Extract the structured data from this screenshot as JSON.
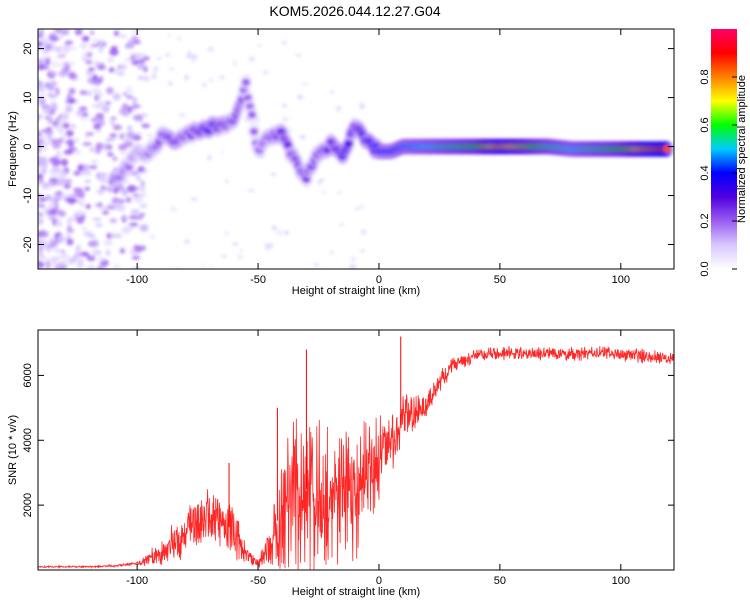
{
  "title": "KOM5.2026.044.12.27.G04",
  "chart_data": [
    {
      "type": "heatmap",
      "name": "spectrogram",
      "title": "KOM5.2026.044.12.27.G04",
      "xlabel": "Height of straight line (km)",
      "ylabel": "Frequency (Hz)",
      "xlim": [
        -141,
        122
      ],
      "ylim": [
        -25,
        24
      ],
      "xticks": [
        -100,
        -50,
        0,
        50,
        100
      ],
      "yticks": [
        -20,
        -10,
        0,
        10,
        20
      ],
      "colorbar": {
        "label": "Normalized spectral amplitude",
        "range": [
          0,
          1
        ],
        "ticks": [
          0.0,
          0.2,
          0.4,
          0.6,
          0.8
        ],
        "tick_labels": [
          "0.0",
          "0.2",
          "0.4",
          "0.6",
          "0.8"
        ],
        "colormap": [
          "#ffffff",
          "#d8c8ff",
          "#9a5cf0",
          "#5000e0",
          "#0000ff",
          "#00ccff",
          "#00ff00",
          "#ffff00",
          "#ff8000",
          "#ff0000",
          "#ff0066"
        ]
      },
      "track": [
        {
          "x": -110,
          "f": -7.5,
          "a": 0.25
        },
        {
          "x": -100,
          "f": -1.5,
          "a": 0.15
        },
        {
          "x": -95,
          "f": -1.5,
          "a": 0.2
        },
        {
          "x": -90,
          "f": 2.0,
          "a": 0.25
        },
        {
          "x": -85,
          "f": 1.0,
          "a": 0.3
        },
        {
          "x": -80,
          "f": 2.5,
          "a": 0.25
        },
        {
          "x": -75,
          "f": 3.0,
          "a": 0.3
        },
        {
          "x": -70,
          "f": 4.0,
          "a": 0.35
        },
        {
          "x": -65,
          "f": 4.5,
          "a": 0.3
        },
        {
          "x": -60,
          "f": 5.0,
          "a": 0.25
        },
        {
          "x": -55,
          "f": 12.5,
          "a": 0.2
        },
        {
          "x": -50,
          "f": -1.0,
          "a": 0.2
        },
        {
          "x": -45,
          "f": 2.0,
          "a": 0.25
        },
        {
          "x": -40,
          "f": 2.5,
          "a": 0.3
        },
        {
          "x": -35,
          "f": -3.0,
          "a": 0.25
        },
        {
          "x": -30,
          "f": -6.0,
          "a": 0.25
        },
        {
          "x": -25,
          "f": -1.5,
          "a": 0.25
        },
        {
          "x": -20,
          "f": 0.5,
          "a": 0.3
        },
        {
          "x": -15,
          "f": -2.0,
          "a": 0.35
        },
        {
          "x": -10,
          "f": 4.0,
          "a": 0.3
        },
        {
          "x": -5,
          "f": 1.0,
          "a": 0.35
        },
        {
          "x": 0,
          "f": -1.0,
          "a": 0.4
        },
        {
          "x": 5,
          "f": -1.0,
          "a": 0.4
        },
        {
          "x": 10,
          "f": 0.0,
          "a": 0.45
        },
        {
          "x": 20,
          "f": 0.0,
          "a": 0.5
        },
        {
          "x": 30,
          "f": 0.0,
          "a": 0.55
        },
        {
          "x": 40,
          "f": 0.0,
          "a": 0.6
        },
        {
          "x": 50,
          "f": 0.0,
          "a": 0.75
        },
        {
          "x": 60,
          "f": 0.0,
          "a": 0.65
        },
        {
          "x": 70,
          "f": 0.0,
          "a": 0.55
        },
        {
          "x": 80,
          "f": -0.5,
          "a": 0.5
        },
        {
          "x": 90,
          "f": -0.5,
          "a": 0.55
        },
        {
          "x": 100,
          "f": -0.5,
          "a": 0.6
        },
        {
          "x": 110,
          "f": -0.5,
          "a": 0.75
        },
        {
          "x": 120,
          "f": -0.5,
          "a": 0.85
        }
      ]
    },
    {
      "type": "line",
      "name": "snr",
      "xlabel": "Height of straight line (km)",
      "ylabel": "SNR (10 * v/v)",
      "xlim": [
        -141,
        122
      ],
      "ylim": [
        0,
        7400
      ],
      "xticks": [
        -100,
        -50,
        0,
        50,
        100
      ],
      "yticks": [
        2000,
        4000,
        6000
      ],
      "color": "#ff0000",
      "series": [
        {
          "name": "SNR",
          "x": [
            -141,
            -130,
            -120,
            -110,
            -100,
            -90,
            -85,
            -80,
            -75,
            -70,
            -65,
            -60,
            -55,
            -52,
            -50,
            -45,
            -40,
            -35,
            -30,
            -25,
            -20,
            -15,
            -10,
            -5,
            0,
            5,
            10,
            15,
            20,
            25,
            30,
            35,
            40,
            45,
            50,
            60,
            70,
            80,
            90,
            100,
            110,
            122
          ],
          "y": [
            100,
            100,
            100,
            120,
            200,
            500,
            800,
            1200,
            1500,
            1700,
            1500,
            1200,
            500,
            300,
            200,
            800,
            2000,
            2700,
            2500,
            2500,
            2400,
            2800,
            2600,
            3000,
            3600,
            4000,
            4600,
            4800,
            5100,
            5800,
            6300,
            6500,
            6600,
            6650,
            6700,
            6650,
            6700,
            6650,
            6700,
            6650,
            6600,
            6550
          ],
          "noise": [
            30,
            30,
            30,
            40,
            60,
            500,
            700,
            900,
            1000,
            1000,
            900,
            900,
            400,
            200,
            150,
            800,
            1600,
            2400,
            2400,
            2200,
            2200,
            2200,
            2000,
            1800,
            1200,
            1000,
            900,
            700,
            500,
            400,
            300,
            280,
            250,
            250,
            250,
            250,
            250,
            250,
            250,
            250,
            250,
            250
          ],
          "peaks": [
            {
              "x": -30,
              "y": 6800
            },
            {
              "x": 9,
              "y": 7200
            },
            {
              "x": -42,
              "y": 5000
            },
            {
              "x": -62,
              "y": 3300
            }
          ]
        }
      ]
    }
  ]
}
